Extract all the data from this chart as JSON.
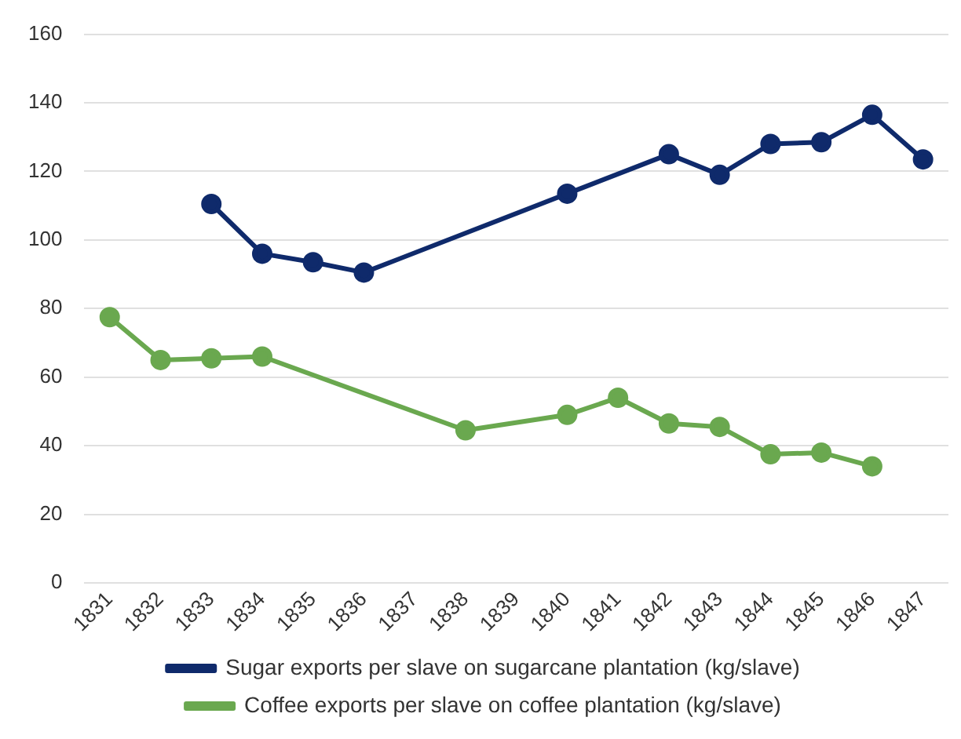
{
  "chart_data": {
    "type": "line",
    "categories": [
      "1831",
      "1832",
      "1833",
      "1834",
      "1835",
      "1836",
      "1837",
      "1838",
      "1839",
      "1840",
      "1841",
      "1842",
      "1843",
      "1844",
      "1845",
      "1846",
      "1847"
    ],
    "series": [
      {
        "name": "Sugar exports per slave on sugarcane plantation (kg/slave)",
        "color": "#0f2a6b",
        "values": [
          null,
          null,
          110.5,
          96,
          93.5,
          90.5,
          null,
          null,
          null,
          113.5,
          null,
          125,
          119,
          128,
          128.5,
          136.5,
          123.5
        ]
      },
      {
        "name": "Coffee exports per slave on coffee plantation (kg/slave)",
        "color": "#6aa84f",
        "values": [
          77.5,
          65,
          65.5,
          66,
          null,
          null,
          null,
          44.5,
          null,
          49,
          54,
          46.5,
          45.5,
          37.5,
          38,
          34,
          null
        ]
      }
    ],
    "ylim": [
      0,
      160
    ],
    "yticks": [
      0,
      20,
      40,
      60,
      80,
      100,
      120,
      140,
      160
    ],
    "grid": "y",
    "legend": "bottom",
    "marker": "circle",
    "line_style": "solid"
  }
}
